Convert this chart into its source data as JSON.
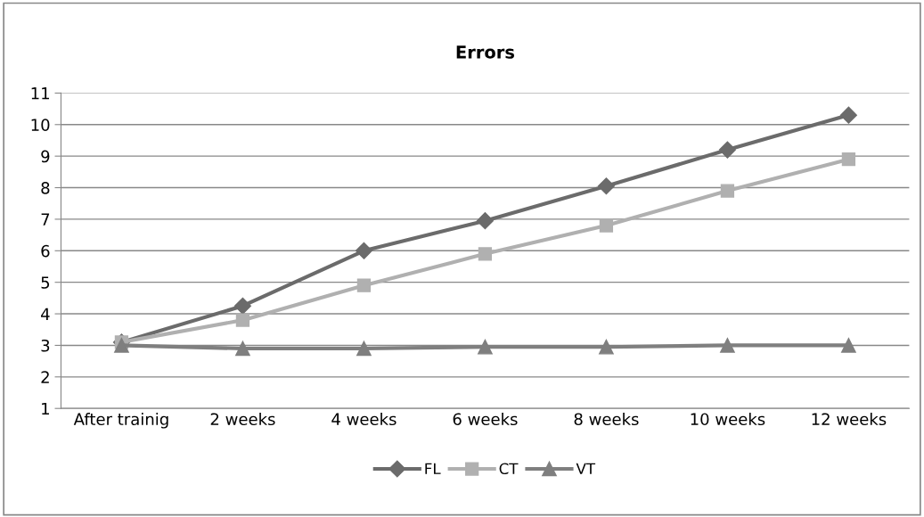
{
  "chart_data": {
    "type": "line",
    "title": "Errors",
    "categories": [
      "After trainig",
      "2 weeks",
      "4 weeks",
      "6 weeks",
      "8 weeks",
      "10 weeks",
      "12 weeks"
    ],
    "series": [
      {
        "name": "FL",
        "color": "#6b6b6b",
        "marker": "diamond",
        "values": [
          3.1,
          4.25,
          6.0,
          6.95,
          8.05,
          9.2,
          10.3
        ]
      },
      {
        "name": "CT",
        "color": "#b0b0b0",
        "marker": "square",
        "values": [
          3.1,
          3.8,
          4.9,
          5.9,
          6.8,
          7.9,
          8.9
        ]
      },
      {
        "name": "VT",
        "color": "#7f7f7f",
        "marker": "triangle",
        "values": [
          3.0,
          2.9,
          2.9,
          2.95,
          2.95,
          3.0,
          3.0
        ]
      }
    ],
    "ylim": [
      1,
      11
    ],
    "yticks": [
      1,
      2,
      3,
      4,
      5,
      6,
      7,
      8,
      9,
      10,
      11
    ],
    "grid": "y",
    "legend": "bottom",
    "line_style": "solid"
  }
}
